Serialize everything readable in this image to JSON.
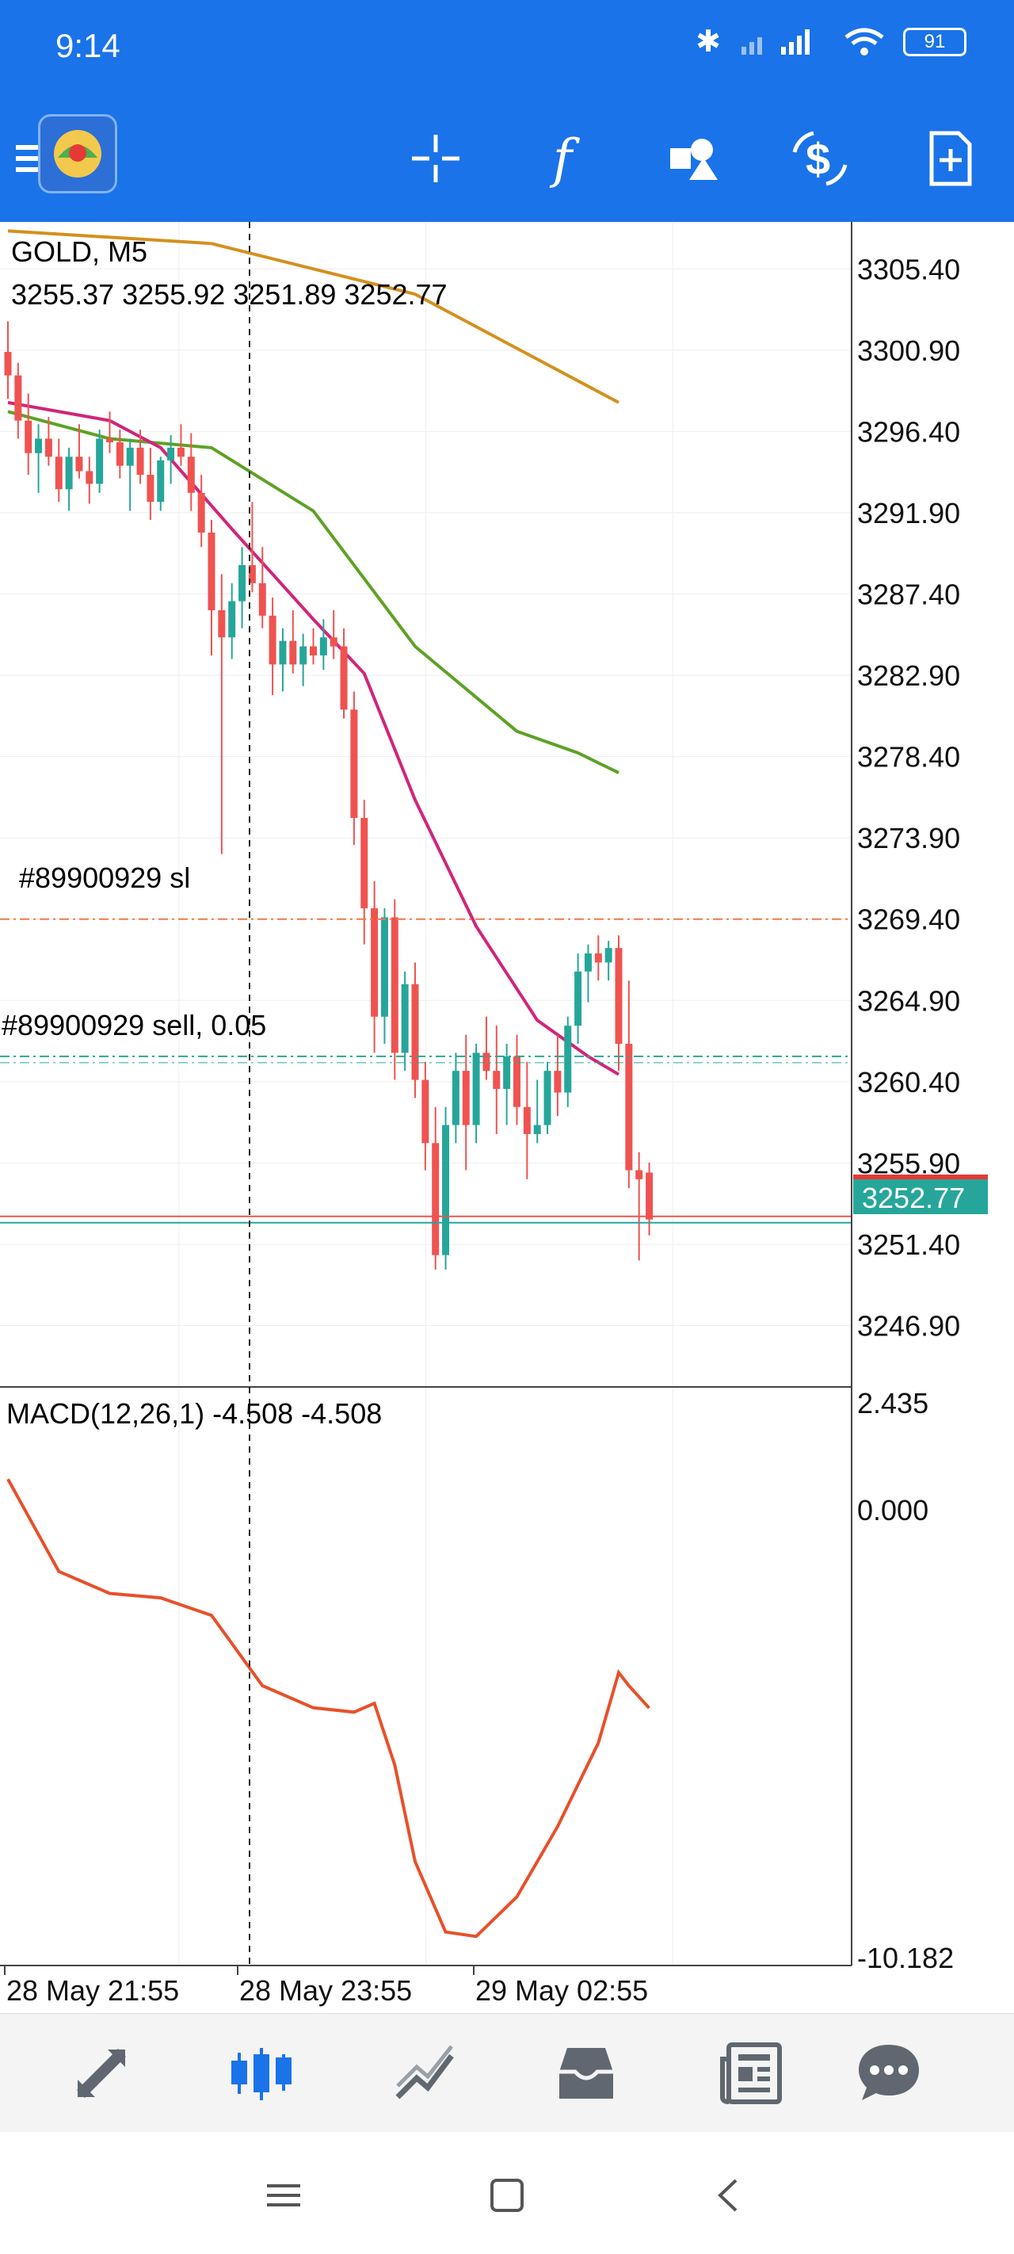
{
  "status": {
    "time": "9:14",
    "battery": "91"
  },
  "toolbar": {
    "buttons": [
      "crosshair",
      "indicators",
      "objects",
      "trade",
      "new-order"
    ]
  },
  "chart": {
    "symbol_label": "GOLD, M5",
    "ohlc_label": "3255.37 3255.92 3251.89 3252.77",
    "sl_label": "#89900929 sl",
    "order_label": "#89900929 sell, 0.05",
    "current_price": "3252.77",
    "price_ticks": [
      "3305.40",
      "3300.90",
      "3296.40",
      "3291.90",
      "3287.40",
      "3282.90",
      "3278.40",
      "3273.90",
      "3269.40",
      "3264.90",
      "3260.40",
      "3255.90",
      "3251.40",
      "3246.90"
    ],
    "macd_label": "MACD(12,26,1) -4.508 -4.508",
    "macd_ticks": [
      "2.435",
      "0.000",
      "-10.182"
    ],
    "time_ticks": [
      "28 May 21:55",
      "28 May 23:55",
      "29 May 02:55"
    ]
  },
  "chart_data": {
    "type": "candlestick",
    "symbol": "GOLD",
    "timeframe": "M5",
    "price_range": [
      3243.5,
      3308.0
    ],
    "sl_price": 3269.4,
    "order_price": 3261.8,
    "last_price": 3252.77,
    "candles": [
      [
        3300.8,
        3302.5,
        3298.2,
        3299.5
      ],
      [
        3299.5,
        3300.2,
        3296.0,
        3297.0
      ],
      [
        3297.0,
        3298.5,
        3294.0,
        3295.2
      ],
      [
        3295.2,
        3296.8,
        3293.0,
        3296.0
      ],
      [
        3296.0,
        3297.2,
        3294.5,
        3295.0
      ],
      [
        3295.0,
        3296.0,
        3292.5,
        3293.2
      ],
      [
        3293.2,
        3295.5,
        3292.0,
        3295.0
      ],
      [
        3295.0,
        3296.8,
        3293.8,
        3294.2
      ],
      [
        3294.2,
        3295.0,
        3292.4,
        3293.5
      ],
      [
        3293.5,
        3296.5,
        3293.0,
        3296.0
      ],
      [
        3296.0,
        3297.5,
        3295.2,
        3295.8
      ],
      [
        3295.8,
        3296.5,
        3293.8,
        3294.5
      ],
      [
        3294.5,
        3296.0,
        3292.0,
        3295.5
      ],
      [
        3295.5,
        3296.5,
        3293.5,
        3294.0
      ],
      [
        3294.0,
        3295.5,
        3291.5,
        3292.5
      ],
      [
        3292.5,
        3295.0,
        3292.0,
        3294.8
      ],
      [
        3294.8,
        3296.2,
        3293.5,
        3295.5
      ],
      [
        3295.5,
        3296.8,
        3294.5,
        3295.0
      ],
      [
        3295.0,
        3296.3,
        3292.0,
        3293.0
      ],
      [
        3293.0,
        3294.0,
        3290.0,
        3290.8
      ],
      [
        3290.8,
        3291.5,
        3284.0,
        3286.5
      ],
      [
        3286.5,
        3288.5,
        3273.0,
        3285.0
      ],
      [
        3285.0,
        3288.0,
        3283.8,
        3287.0
      ],
      [
        3287.0,
        3290.0,
        3285.5,
        3289.0
      ],
      [
        3289.0,
        3292.5,
        3287.5,
        3288.0
      ],
      [
        3288.0,
        3290.0,
        3285.5,
        3286.2
      ],
      [
        3286.2,
        3287.2,
        3281.8,
        3283.5
      ],
      [
        3283.5,
        3285.5,
        3282.0,
        3284.8
      ],
      [
        3284.8,
        3286.5,
        3283.0,
        3283.5
      ],
      [
        3283.5,
        3285.2,
        3282.3,
        3284.5
      ],
      [
        3284.5,
        3285.5,
        3283.5,
        3284.0
      ],
      [
        3284.0,
        3286.0,
        3283.2,
        3285.0
      ],
      [
        3285.0,
        3286.5,
        3283.8,
        3284.5
      ],
      [
        3284.5,
        3285.5,
        3280.5,
        3281.0
      ],
      [
        3281.0,
        3282.0,
        3273.5,
        3275.0
      ],
      [
        3275.0,
        3276.0,
        3268.0,
        3270.0
      ],
      [
        3270.0,
        3271.5,
        3262.0,
        3264.0
      ],
      [
        3264.0,
        3270.0,
        3262.5,
        3269.5
      ],
      [
        3269.5,
        3270.5,
        3260.5,
        3262.0
      ],
      [
        3262.0,
        3266.5,
        3261.0,
        3265.8
      ],
      [
        3265.8,
        3267.0,
        3259.5,
        3260.5
      ],
      [
        3260.5,
        3261.5,
        3255.5,
        3257.0
      ],
      [
        3257.0,
        3259.0,
        3250.0,
        3250.8
      ],
      [
        3250.8,
        3259.0,
        3250.0,
        3258.0
      ],
      [
        3258.0,
        3262.0,
        3257.0,
        3261.0
      ],
      [
        3261.0,
        3263.0,
        3255.5,
        3258.0
      ],
      [
        3258.0,
        3262.5,
        3257.0,
        3262.0
      ],
      [
        3262.0,
        3264.0,
        3260.5,
        3261.0
      ],
      [
        3261.0,
        3263.5,
        3257.5,
        3260.0
      ],
      [
        3260.0,
        3262.5,
        3258.0,
        3261.8
      ],
      [
        3261.8,
        3263.0,
        3258.0,
        3259.0
      ],
      [
        3259.0,
        3261.5,
        3255.0,
        3257.5
      ],
      [
        3257.5,
        3260.5,
        3257.0,
        3258.0
      ],
      [
        3258.0,
        3261.5,
        3257.5,
        3261.0
      ],
      [
        3261.0,
        3263.0,
        3258.5,
        3259.8
      ],
      [
        3259.8,
        3264.0,
        3259.0,
        3263.5
      ],
      [
        3263.5,
        3267.5,
        3262.5,
        3266.5
      ],
      [
        3266.5,
        3268.0,
        3264.8,
        3267.5
      ],
      [
        3267.5,
        3268.5,
        3266.0,
        3267.0
      ],
      [
        3267.0,
        3268.2,
        3266.0,
        3267.8
      ],
      [
        3267.8,
        3268.5,
        3261.0,
        3262.5
      ],
      [
        3262.5,
        3266.0,
        3254.5,
        3255.5
      ],
      [
        3255.5,
        3256.5,
        3250.5,
        3255.0
      ],
      [
        3255.37,
        3255.92,
        3251.89,
        3252.77
      ]
    ],
    "ma_orange": [
      [
        0,
        3307.5
      ],
      [
        20,
        3306.8
      ],
      [
        40,
        3304.0
      ],
      [
        60,
        3298.0
      ]
    ],
    "ma_green": [
      [
        0,
        3297.5
      ],
      [
        10,
        3296.0
      ],
      [
        20,
        3295.5
      ],
      [
        30,
        3292.0
      ],
      [
        40,
        3284.5
      ],
      [
        50,
        3279.8
      ],
      [
        56,
        3278.6
      ],
      [
        60,
        3277.5
      ]
    ],
    "ma_pink": [
      [
        0,
        3298.0
      ],
      [
        10,
        3297.0
      ],
      [
        15,
        3295.5
      ],
      [
        22,
        3291.0
      ],
      [
        30,
        3286.0
      ],
      [
        35,
        3283.0
      ],
      [
        40,
        3276.0
      ],
      [
        46,
        3269.0
      ],
      [
        52,
        3263.8
      ],
      [
        57,
        3261.8
      ],
      [
        60,
        3260.8
      ]
    ],
    "macd_range": [
      -10.182,
      2.435
    ],
    "macd": [
      [
        0,
        0.7
      ],
      [
        5,
        -1.4
      ],
      [
        10,
        -1.9
      ],
      [
        15,
        -2.0
      ],
      [
        20,
        -2.4
      ],
      [
        25,
        -4.0
      ],
      [
        30,
        -4.5
      ],
      [
        34,
        -4.6
      ],
      [
        36,
        -4.4
      ],
      [
        38,
        -5.8
      ],
      [
        40,
        -8.0
      ],
      [
        43,
        -9.6
      ],
      [
        46,
        -9.7
      ],
      [
        50,
        -8.8
      ],
      [
        54,
        -7.2
      ],
      [
        58,
        -5.3
      ],
      [
        60,
        -3.7
      ],
      [
        61,
        -4.0
      ],
      [
        63,
        -4.508
      ]
    ]
  },
  "bottom_nav": [
    "quotes",
    "chart",
    "trade",
    "history",
    "news",
    "messages"
  ]
}
